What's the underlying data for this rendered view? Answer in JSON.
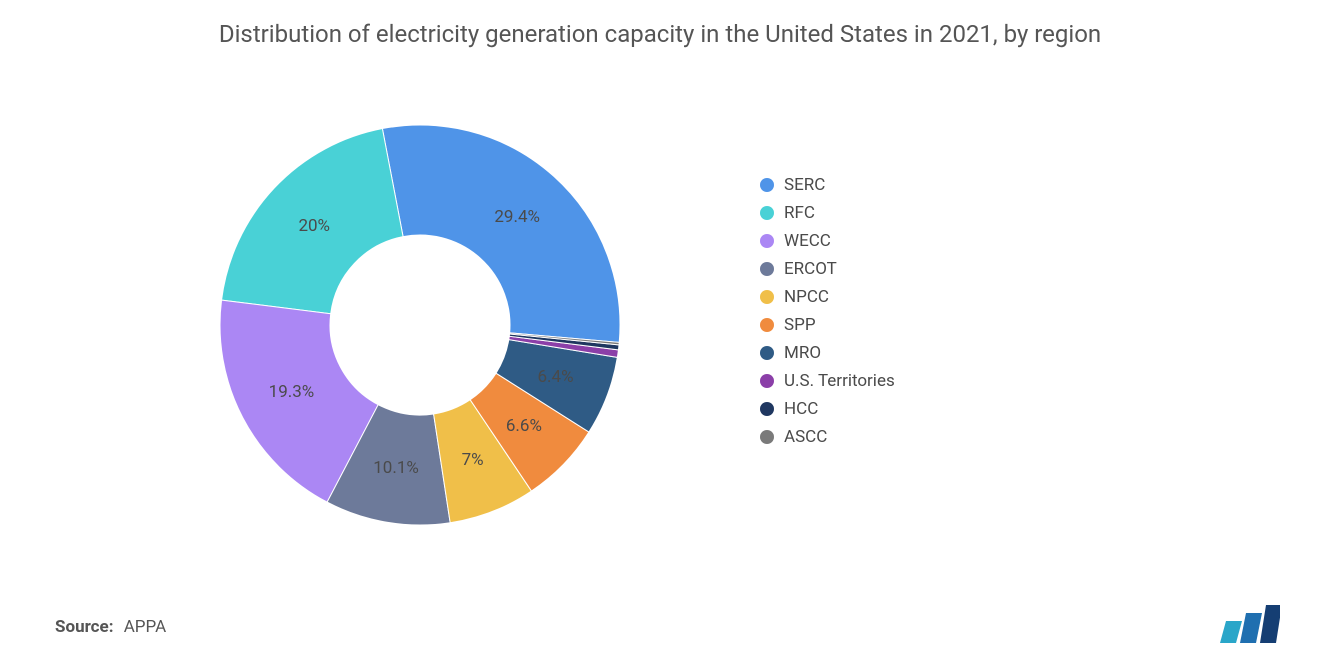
{
  "title": "Distribution of electricity generation capacity in the United States in 2021, by region",
  "source_label": "Source:",
  "source_value": "APPA",
  "chart": {
    "type": "donut",
    "inner_radius_ratio": 0.45,
    "background_color": "#ffffff",
    "label_fontsize": 17,
    "label_color": "#4a4a4a",
    "title_fontsize": 24,
    "title_color": "#555555",
    "start_angle_deg": -5,
    "direction": "clockwise",
    "slices": [
      {
        "name": "SERC",
        "value": 29.4,
        "color": "#4f94e8",
        "label": "29.4%",
        "show_label": true
      },
      {
        "name": "RFC",
        "value": 20.0,
        "color": "#49d1d6",
        "label": "20%",
        "show_label": true
      },
      {
        "name": "WECC",
        "value": 19.3,
        "color": "#ab87f4",
        "label": "19.3%",
        "show_label": true
      },
      {
        "name": "ERCOT",
        "value": 10.1,
        "color": "#6d7a9a",
        "label": "10.1%",
        "show_label": true
      },
      {
        "name": "NPCC",
        "value": 7.0,
        "color": "#f0bf49",
        "label": "7%",
        "show_label": true
      },
      {
        "name": "SPP",
        "value": 6.6,
        "color": "#f08b3e",
        "label": "6.6%",
        "show_label": true
      },
      {
        "name": "MRO",
        "value": 6.4,
        "color": "#2f5b85",
        "label": "6.4%",
        "show_label": true
      },
      {
        "name": "U.S. Territories",
        "value": 0.6,
        "color": "#8b3fa8",
        "label": "",
        "show_label": false
      },
      {
        "name": "HCC",
        "value": 0.4,
        "color": "#1f3760",
        "label": "",
        "show_label": false
      },
      {
        "name": "ASCC",
        "value": 0.2,
        "color": "#7a7a7a",
        "label": "",
        "show_label": false
      }
    ]
  },
  "legend": {
    "fontsize": 17,
    "color": "#4a4a4a",
    "items": [
      {
        "label": "SERC",
        "color": "#4f94e8"
      },
      {
        "label": "RFC",
        "color": "#49d1d6"
      },
      {
        "label": "WECC",
        "color": "#ab87f4"
      },
      {
        "label": "ERCOT",
        "color": "#6d7a9a"
      },
      {
        "label": "NPCC",
        "color": "#f0bf49"
      },
      {
        "label": "SPP",
        "color": "#f08b3e"
      },
      {
        "label": "MRO",
        "color": "#2f5b85"
      },
      {
        "label": "U.S. Territories",
        "color": "#8b3fa8"
      },
      {
        "label": "HCC",
        "color": "#1f3760"
      },
      {
        "label": "ASCC",
        "color": "#7a7a7a"
      }
    ]
  },
  "logo": {
    "bar1_color": "#2aa6c9",
    "bar2_color": "#1f6fb0",
    "bar3_color": "#153e73"
  }
}
